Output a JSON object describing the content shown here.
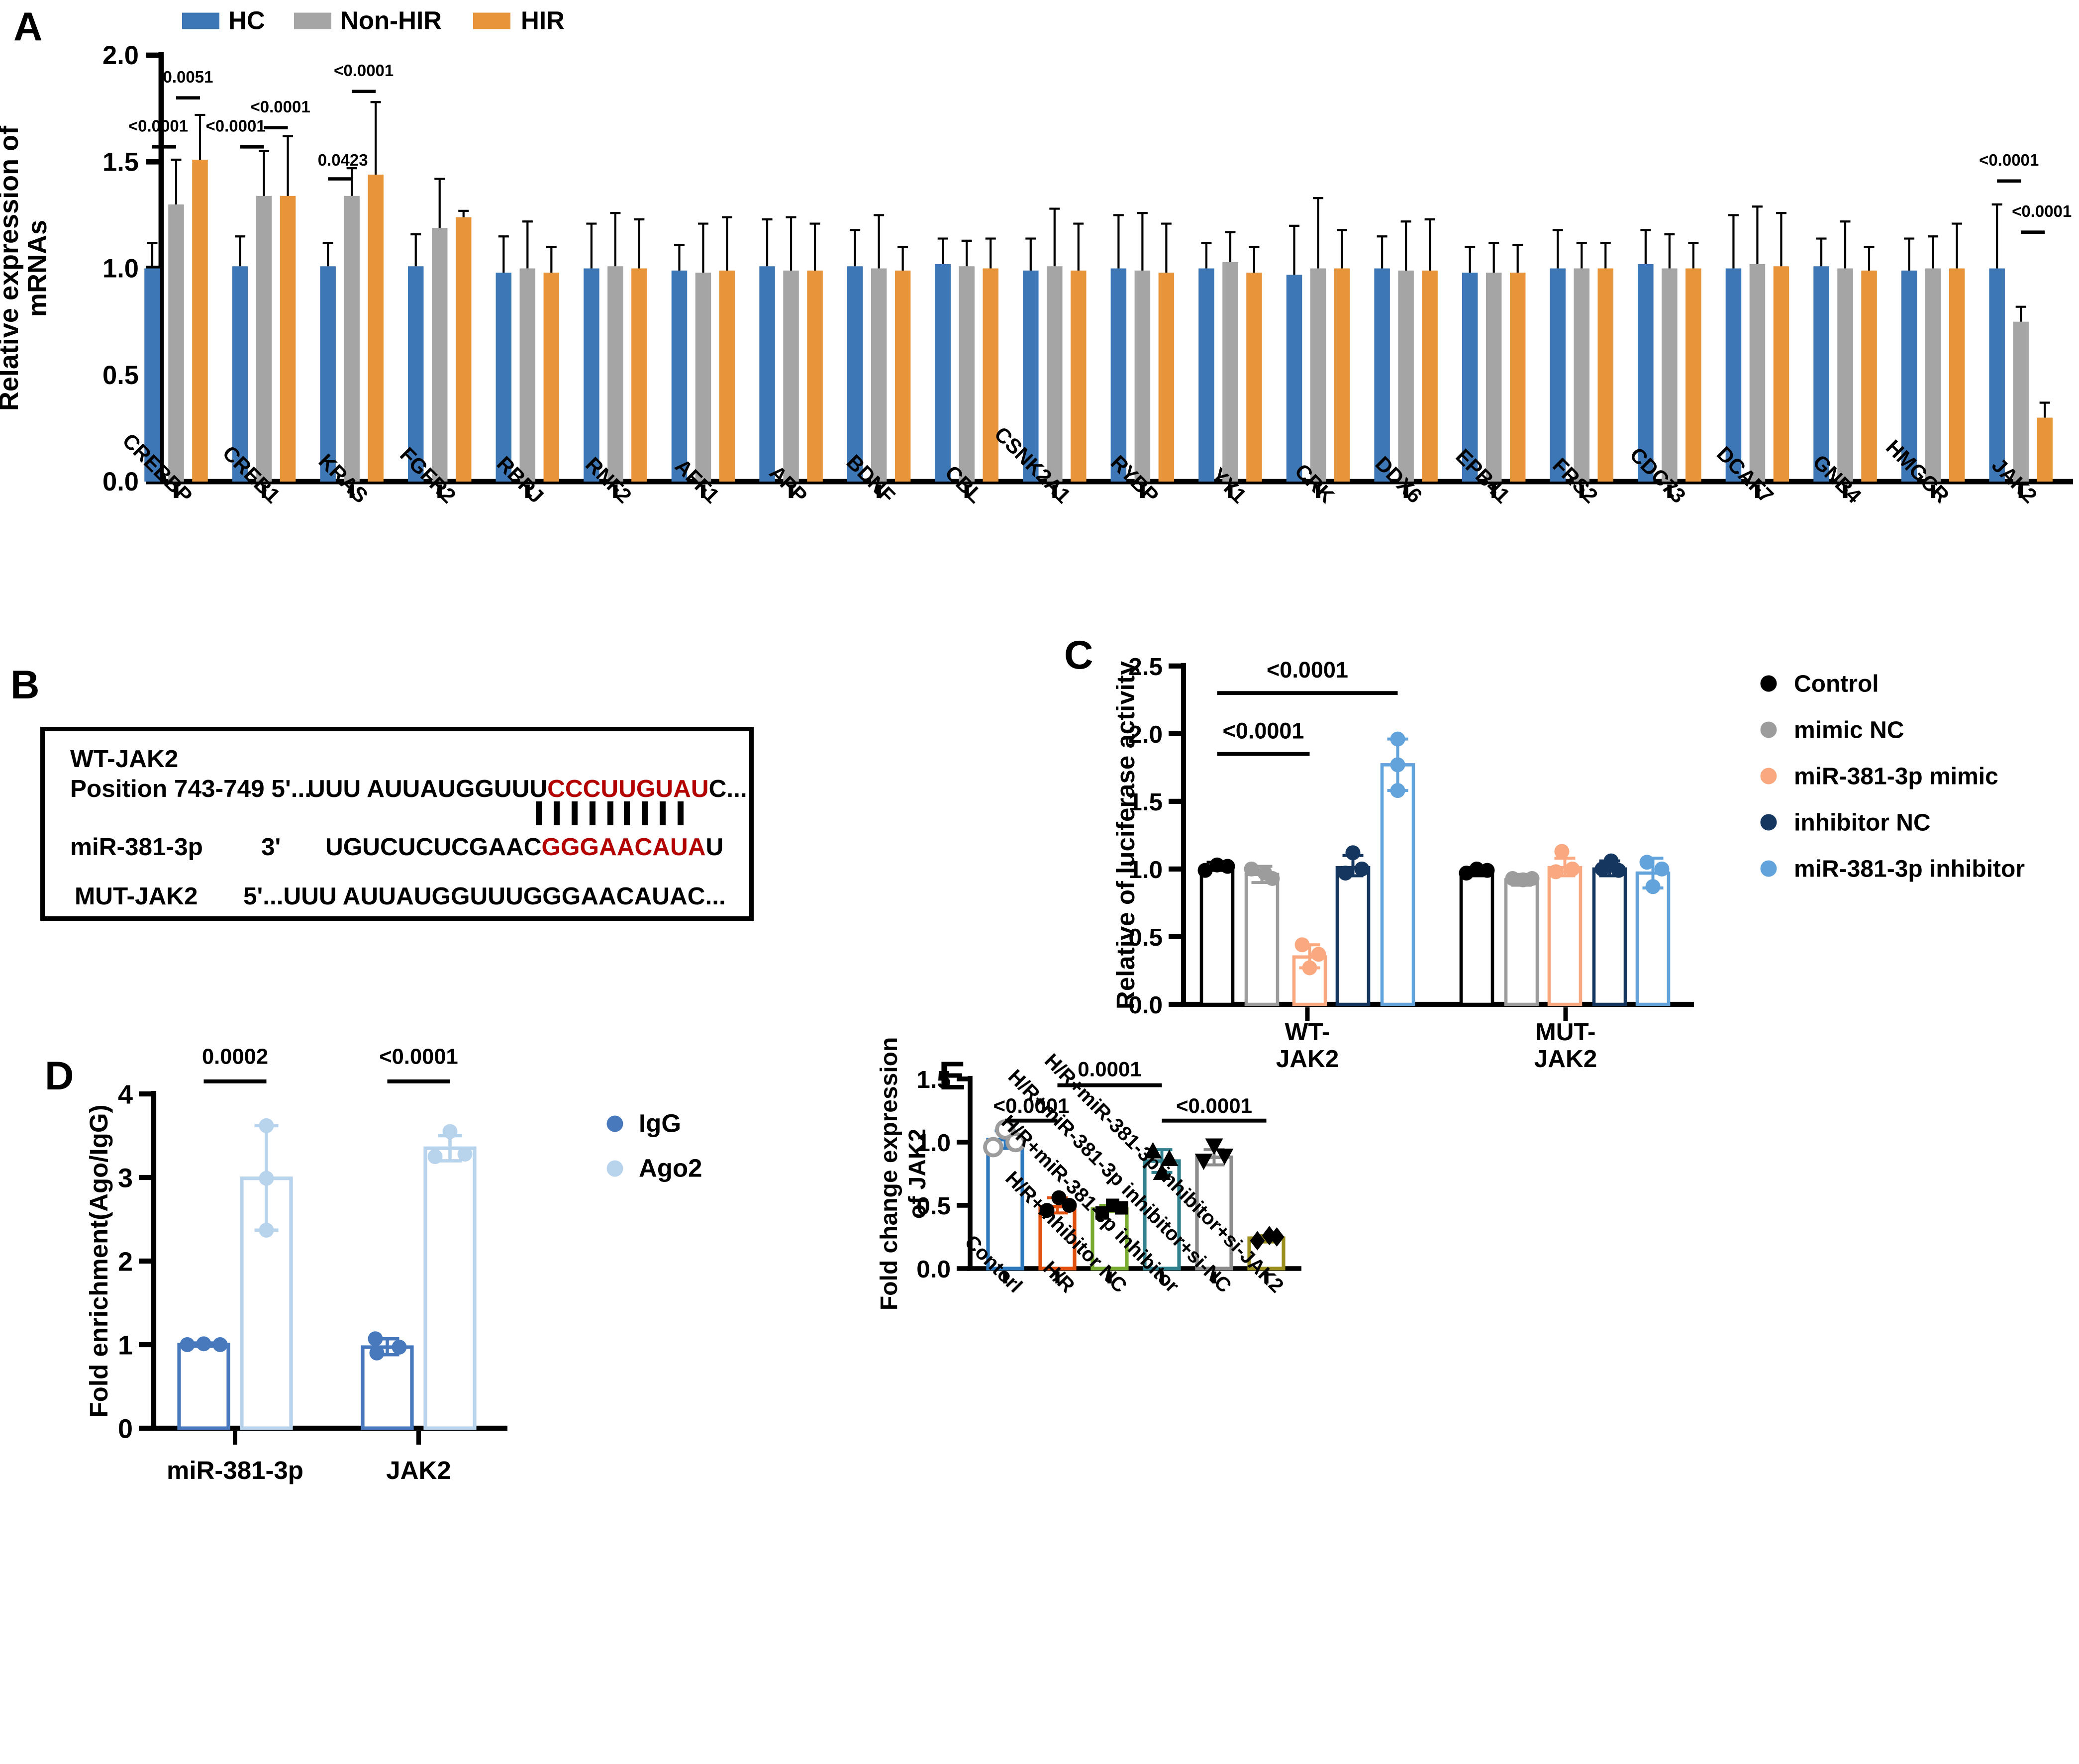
{
  "panels": {
    "a_label": "A",
    "b_label": "B",
    "c_label": "C",
    "d_label": "D",
    "e_label": "E"
  },
  "panel_b": {
    "wt_label": "WT-JAK2",
    "position_label": "Position 743-749 5'...",
    "seq1_black": "UUU AUUAUGGUUU",
    "seq1_red": "CCCUUGUAU",
    "seq1_tail": "C...",
    "match_count": 9,
    "mir_label": "miR-381-3p",
    "mir_prime": "3'",
    "mir_black": "UGUCUCUCGAAC",
    "mir_red": "GGGAACAUA",
    "mir_tail": "U",
    "mut_label": "MUT-JAK2",
    "mut_seq": "5'...UUU AUUAUGGUUUGGGAACAUAC...",
    "red_color": "#B30000"
  },
  "chart_data": [
    {
      "id": "A",
      "type": "bar",
      "ylabel_lines": [
        "Relative expression of",
        "mRNAs"
      ],
      "ylim": [
        0,
        2.0
      ],
      "yticks": [
        "0.0",
        "0.5",
        "1.0",
        "1.5",
        "2.0"
      ],
      "legend": [
        {
          "label": "HC",
          "color": "#3D77B5"
        },
        {
          "label": "Non-HIR",
          "color": "#A5A5A5"
        },
        {
          "label": "HIR",
          "color": "#E8943A"
        }
      ],
      "categories": [
        "CREBBP",
        "CREB1",
        "KRAS",
        "FGFR2",
        "RBPJ",
        "RNF2",
        "AFF1",
        "APP",
        "BDNF",
        "CBL",
        "CSNK2A1",
        "RYBP",
        "YY1",
        "CRK",
        "DDX6",
        "EPB41",
        "FRS2",
        "CDC73",
        "DCAF7",
        "GNB4",
        "HMGCR",
        "JAK2"
      ],
      "series": [
        {
          "name": "HC",
          "values": [
            1.0,
            1.01,
            1.01,
            1.01,
            0.98,
            1.0,
            0.99,
            1.01,
            1.01,
            1.02,
            0.99,
            1.0,
            1.0,
            0.97,
            1.0,
            0.98,
            1.0,
            1.02,
            1.0,
            1.01,
            0.99,
            1.0
          ],
          "err": [
            0.12,
            0.14,
            0.11,
            0.15,
            0.17,
            0.21,
            0.12,
            0.22,
            0.17,
            0.12,
            0.15,
            0.25,
            0.12,
            0.23,
            0.15,
            0.12,
            0.18,
            0.16,
            0.25,
            0.13,
            0.15,
            0.3
          ]
        },
        {
          "name": "Non-HIR",
          "values": [
            1.3,
            1.34,
            1.34,
            1.19,
            1.0,
            1.01,
            0.98,
            0.99,
            1.0,
            1.01,
            1.01,
            0.99,
            1.03,
            1.0,
            0.99,
            0.98,
            1.0,
            1.0,
            1.02,
            1.0,
            1.0,
            0.75
          ],
          "err": [
            0.21,
            0.21,
            0.13,
            0.23,
            0.22,
            0.25,
            0.23,
            0.25,
            0.25,
            0.12,
            0.27,
            0.27,
            0.14,
            0.33,
            0.23,
            0.14,
            0.12,
            0.16,
            0.27,
            0.22,
            0.15,
            0.07
          ]
        },
        {
          "name": "HIR",
          "values": [
            1.51,
            1.34,
            1.44,
            1.24,
            0.98,
            1.0,
            0.99,
            0.99,
            0.99,
            1.0,
            0.99,
            0.98,
            0.98,
            1.0,
            0.99,
            0.98,
            1.0,
            1.0,
            1.01,
            0.99,
            1.0,
            0.3
          ],
          "err": [
            0.21,
            0.28,
            0.34,
            0.03,
            0.12,
            0.23,
            0.25,
            0.22,
            0.11,
            0.14,
            0.22,
            0.23,
            0.12,
            0.18,
            0.24,
            0.13,
            0.12,
            0.12,
            0.25,
            0.11,
            0.21,
            0.07
          ]
        }
      ],
      "annotations": [
        {
          "gene": 0,
          "bars": [
            0,
            1
          ],
          "label": "<0.0001",
          "line": 1.57,
          "texty": 1.67,
          "tdx": -4
        },
        {
          "gene": 0,
          "bars": [
            1,
            2
          ],
          "label": "0.0051",
          "line": 1.8,
          "texty": 1.9,
          "tdx": 0
        },
        {
          "gene": 1,
          "bars": [
            0,
            1
          ],
          "label": "<0.0001",
          "line": 1.57,
          "texty": 1.67,
          "tdx": -11
        },
        {
          "gene": 1,
          "bars": [
            1,
            2
          ],
          "label": "<0.0001",
          "line": 1.66,
          "texty": 1.76,
          "tdx": 3
        },
        {
          "gene": 2,
          "bars": [
            0,
            1
          ],
          "label": "0.0423",
          "line": 1.42,
          "texty": 1.51,
          "tdx": 2
        },
        {
          "gene": 2,
          "bars": [
            1,
            2
          ],
          "label": "<0.0001",
          "line": 1.83,
          "texty": 1.93,
          "tdx": 0
        },
        {
          "gene": 21,
          "bars": [
            0,
            1
          ],
          "label": "<0.0001",
          "line": 1.41,
          "texty": 1.51,
          "tdx": 0
        },
        {
          "gene": 21,
          "bars": [
            1,
            2
          ],
          "label": "<0.0001",
          "line": 1.17,
          "texty": 1.27,
          "tdx": 6
        }
      ]
    },
    {
      "id": "C",
      "type": "bar",
      "ylabel": "Relative of luciferase activity",
      "ylim": [
        0,
        2.5
      ],
      "yticks": [
        "0.0",
        "0.5",
        "1.0",
        "1.5",
        "2.0",
        "2.5"
      ],
      "group_labels": [
        [
          "WT-",
          "JAK2"
        ],
        [
          "MUT-",
          "JAK2"
        ]
      ],
      "legend": [
        {
          "label": "Control",
          "color": "#000000"
        },
        {
          "label": "mimic NC",
          "color": "#9C9C9C"
        },
        {
          "label": "miR-381-3p mimic",
          "color": "#F9A880"
        },
        {
          "label": "inhibitor NC",
          "color": "#15375F"
        },
        {
          "label": "miR-381-3p inhibitor",
          "color": "#63A3DC"
        }
      ],
      "values": [
        [
          1.02,
          0.96,
          0.35,
          1.01,
          1.77
        ],
        [
          0.98,
          0.92,
          1.01,
          1.0,
          0.97
        ]
      ],
      "err": [
        [
          [
            0.99,
            1.05
          ],
          [
            0.9,
            1.02
          ],
          [
            0.27,
            0.44
          ],
          [
            0.95,
            1.1
          ],
          [
            1.58,
            1.96
          ]
        ],
        [
          [
            0.95,
            1.01
          ],
          [
            0.88,
            0.96
          ],
          [
            0.95,
            1.08
          ],
          [
            0.95,
            1.06
          ],
          [
            0.86,
            1.08
          ]
        ]
      ],
      "dots": [
        [
          [
            [
              -8,
              0.99
            ],
            [
              0,
              1.03
            ],
            [
              7,
              1.02
            ]
          ],
          [
            [
              -7,
              1.0
            ],
            [
              2,
              0.97
            ],
            [
              7,
              0.93
            ]
          ],
          [
            [
              -5,
              0.44
            ],
            [
              6,
              0.37
            ],
            [
              0,
              0.27
            ]
          ],
          [
            [
              -5,
              0.97
            ],
            [
              6,
              1.0
            ],
            [
              0,
              1.12
            ]
          ],
          [
            [
              0,
              1.58
            ],
            [
              0,
              1.77
            ],
            [
              0,
              1.96
            ]
          ]
        ],
        [
          [
            [
              -7,
              0.97
            ],
            [
              0,
              1.0
            ],
            [
              7,
              0.99
            ]
          ],
          [
            [
              -6,
              0.93
            ],
            [
              1,
              0.92
            ],
            [
              7,
              0.93
            ]
          ],
          [
            [
              -2,
              1.13
            ],
            [
              -6,
              0.98
            ],
            [
              5,
              1.0
            ]
          ],
          [
            [
              -5,
              1.0
            ],
            [
              1,
              1.06
            ],
            [
              6,
              0.99
            ]
          ],
          [
            [
              -4,
              1.05
            ],
            [
              6,
              1.0
            ],
            [
              0,
              0.87
            ]
          ]
        ]
      ],
      "brackets": [
        {
          "from": 0,
          "to": 2,
          "line": 1.85,
          "texty": 2.02,
          "label": "<0.0001"
        },
        {
          "from": 0,
          "to": 4,
          "line": 2.3,
          "texty": 2.47,
          "label": "<0.0001"
        }
      ]
    },
    {
      "id": "D",
      "type": "bar",
      "ylabel": "Fold enrichment(Ago/IgG)",
      "ylim": [
        0,
        4
      ],
      "yticks": [
        "0",
        "1",
        "2",
        "3",
        "4"
      ],
      "categories": [
        "miR-381-3p",
        "JAK2"
      ],
      "legend": [
        {
          "label": "IgG",
          "color": "#4879BD"
        },
        {
          "label": "Ago2",
          "color": "#B8D3EC"
        }
      ],
      "values": [
        [
          1.0,
          2.99
        ],
        [
          0.97,
          3.35
        ]
      ],
      "err": [
        [
          [
            0.98,
            1.02
          ],
          [
            2.37,
            3.62
          ]
        ],
        [
          [
            0.88,
            1.07
          ],
          [
            3.2,
            3.5
          ]
        ]
      ],
      "dots": [
        [
          [
            [
              -11,
              1.0
            ],
            [
              0,
              1.01
            ],
            [
              11,
              1.0
            ]
          ],
          [
            [
              0,
              2.37
            ],
            [
              0,
              2.99
            ],
            [
              0,
              3.62
            ]
          ]
        ],
        [
          [
            [
              -8,
              1.07
            ],
            [
              -7,
              0.9
            ],
            [
              8,
              0.97
            ]
          ],
          [
            [
              -10,
              3.25
            ],
            [
              10,
              3.28
            ],
            [
              0,
              3.55
            ]
          ]
        ]
      ],
      "brackets": [
        {
          "group": 0,
          "line": 4.15,
          "texty": 4.45,
          "label": "0.0002"
        },
        {
          "group": 1,
          "line": 4.15,
          "texty": 4.45,
          "label": "<0.0001"
        }
      ]
    },
    {
      "id": "E",
      "type": "bar",
      "ylabel_lines": [
        "Fold change expression",
        "of JAK2"
      ],
      "ylim": [
        0,
        1.5
      ],
      "yticks": [
        "0.0",
        "0.5",
        "1.0",
        "1.5"
      ],
      "categories": [
        "Contorl",
        "H/R",
        "H/R+inhibitor NC",
        "H/R+miR-381-3p inhibitor",
        "H/R+miR-381-3p inhibitor+si-NC",
        "H/R+miR-381-3p inhibitor+si-JAK2"
      ],
      "colors": [
        "#2E79BD",
        "#E1500F",
        "#77AC30",
        "#31808E",
        "#8C8C8C",
        "#9A8F1F"
      ],
      "markers": [
        "circle-open",
        "circle",
        "square",
        "triangle-up",
        "triangle-down",
        "diamond"
      ],
      "marker_colors": [
        "#9C9C9C",
        "#000000",
        "#000000",
        "#000000",
        "#000000",
        "#000000"
      ],
      "values": [
        1.02,
        0.49,
        0.47,
        0.85,
        0.88,
        0.24
      ],
      "err": [
        [
          0.95,
          1.09
        ],
        [
          0.44,
          0.56
        ],
        [
          0.45,
          0.5
        ],
        [
          0.76,
          0.94
        ],
        [
          0.82,
          0.94
        ],
        [
          0.21,
          0.26
        ]
      ],
      "dots": [
        [
          [
            -8,
            0.96
          ],
          [
            0,
            1.1
          ],
          [
            7,
            1.0
          ]
        ],
        [
          [
            -7,
            0.46
          ],
          [
            1,
            0.56
          ],
          [
            8,
            0.5
          ]
        ],
        [
          [
            -5,
            0.44
          ],
          [
            2,
            0.5
          ],
          [
            8,
            0.48
          ]
        ],
        [
          [
            -6,
            0.93
          ],
          [
            5,
            0.87
          ],
          [
            0,
            0.76
          ]
        ],
        [
          [
            -7,
            0.85
          ],
          [
            0,
            0.97
          ],
          [
            7,
            0.89
          ]
        ],
        [
          [
            -6,
            0.22
          ],
          [
            2,
            0.26
          ],
          [
            7,
            0.25
          ]
        ]
      ],
      "brackets": [
        {
          "from": 0,
          "to": 1,
          "line": 1.17,
          "texty": 1.29,
          "label": "<0.0001"
        },
        {
          "from": 1,
          "to": 3,
          "line": 1.45,
          "texty": 1.58,
          "label": "0.0001"
        },
        {
          "from": 3,
          "to": 5,
          "line": 1.17,
          "texty": 1.29,
          "label": "<0.0001"
        }
      ]
    }
  ]
}
